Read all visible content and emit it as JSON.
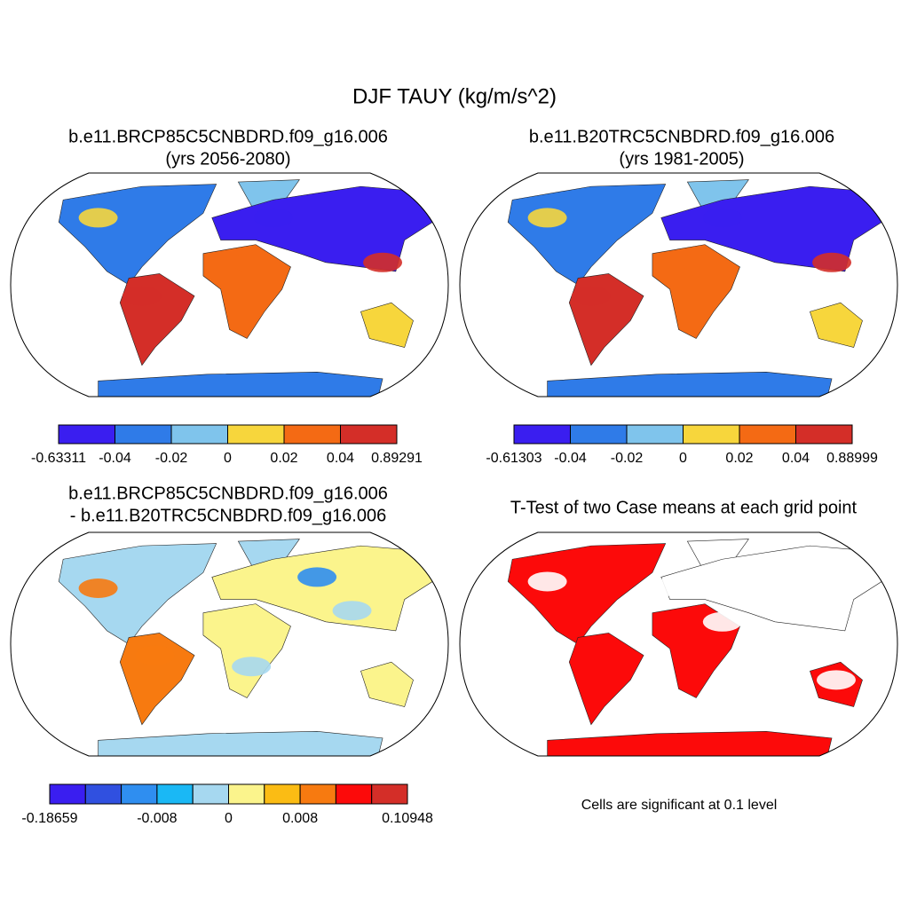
{
  "title": "DJF TAUY (kg/m/s^2)",
  "panels": [
    {
      "title": [
        "b.e11.BRCP85C5CNBDRD.f09_g16.006",
        "(yrs 2056-2080)"
      ],
      "colorbar": {
        "colors": [
          "#3a1ef0",
          "#2f7be8",
          "#7fc4ec",
          "#f7d63c",
          "#f46a14",
          "#d42e28"
        ],
        "labels": [
          "-0.63311",
          "-0.04",
          "-0.02",
          "0",
          "0.02",
          "0.04",
          "0.89291"
        ]
      }
    },
    {
      "title": [
        "b.e11.B20TRC5CNBDRD.f09_g16.006",
        "(yrs 1981-2005)"
      ],
      "colorbar": {
        "colors": [
          "#3a1ef0",
          "#2f7be8",
          "#7fc4ec",
          "#f7d63c",
          "#f46a14",
          "#d42e28"
        ],
        "labels": [
          "-0.61303",
          "-0.04",
          "-0.02",
          "0",
          "0.02",
          "0.04",
          "0.88999"
        ]
      }
    },
    {
      "title": [
        "b.e11.BRCP85C5CNBDRD.f09_g16.006",
        "- b.e11.B20TRC5CNBDRD.f09_g16.006"
      ],
      "colorbar": {
        "colors": [
          "#3a1ef0",
          "#3050e0",
          "#2f8ef0",
          "#1ab8f5",
          "#a6d8f0",
          "#fbf48c",
          "#fbbc14",
          "#f77a10",
          "#fc0a0a",
          "#d42e28"
        ],
        "labels": [
          "-0.18659",
          null,
          null,
          "-0.008",
          null,
          "0",
          null,
          "0.008",
          null,
          null,
          "0.10948"
        ]
      }
    },
    {
      "title": [
        "T-Test of two Case means at each grid point"
      ],
      "note": "Cells are significant at 0.1 level"
    }
  ]
}
